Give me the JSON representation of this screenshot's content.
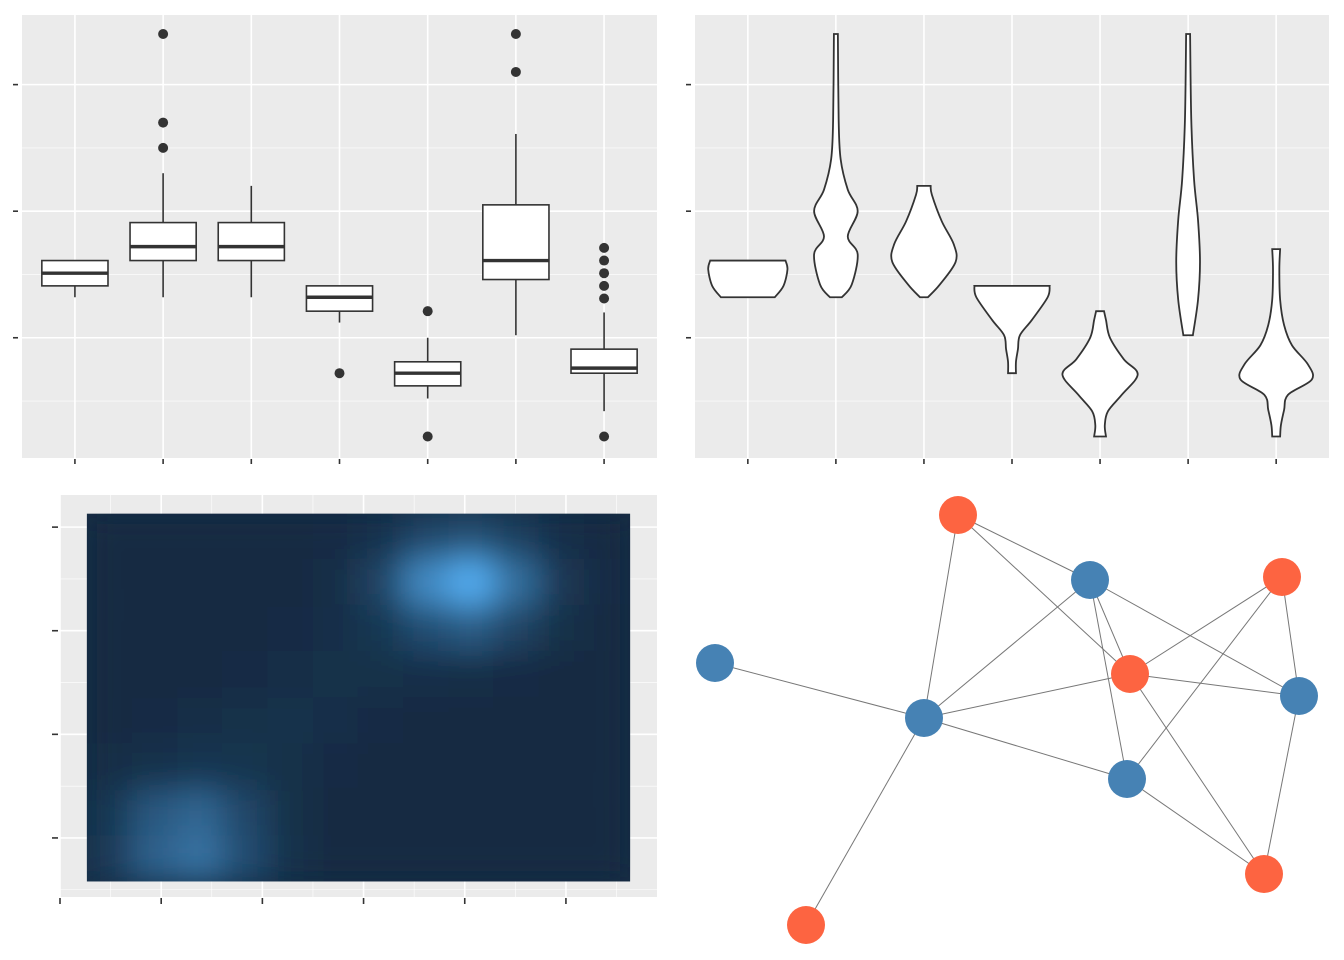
{
  "chart_data": [
    {
      "type": "boxplot",
      "categories": [
        null,
        null,
        null,
        null,
        null,
        null,
        null
      ],
      "ylim": [
        0.05,
        3.55
      ],
      "yticks": [
        1,
        2,
        3
      ],
      "yminor": [
        0.5,
        1.5,
        2.5
      ],
      "grid": true,
      "color": "#333333",
      "boxes": [
        {
          "low": 1.32,
          "q1": 1.41,
          "median": 1.51,
          "q3": 1.61,
          "high": 1.61,
          "outliers": []
        },
        {
          "low": 1.32,
          "q1": 1.61,
          "median": 1.72,
          "q3": 1.91,
          "high": 2.3,
          "outliers": [
            2.5,
            2.7,
            3.4
          ]
        },
        {
          "low": 1.32,
          "q1": 1.61,
          "median": 1.72,
          "q3": 1.91,
          "high": 2.2,
          "outliers": []
        },
        {
          "low": 1.12,
          "q1": 1.21,
          "median": 1.32,
          "q3": 1.41,
          "high": 1.41,
          "outliers": [
            0.72
          ]
        },
        {
          "low": 0.52,
          "q1": 0.62,
          "median": 0.72,
          "q3": 0.81,
          "high": 1.0,
          "outliers": [
            1.21,
            0.22
          ]
        },
        {
          "low": 1.02,
          "q1": 1.46,
          "median": 1.61,
          "q3": 2.05,
          "high": 2.61,
          "outliers": [
            3.1,
            3.4
          ]
        },
        {
          "low": 0.42,
          "q1": 0.72,
          "median": 0.76,
          "q3": 0.91,
          "high": 1.2,
          "outliers": [
            1.31,
            1.41,
            1.51,
            1.61,
            1.71,
            0.22
          ]
        }
      ]
    },
    {
      "type": "violin",
      "categories": [
        null,
        null,
        null,
        null,
        null,
        null,
        null
      ],
      "ylim": [
        0.05,
        3.55
      ],
      "yticks": [
        1,
        2,
        3
      ],
      "yminor": [
        0.5,
        1.5,
        2.5
      ],
      "grid": true,
      "color": "#333333",
      "violins": [
        {
          "y": [
            1.32,
            1.41,
            1.54,
            1.61
          ],
          "density": [
            0.68,
            0.9,
            1,
            0.95
          ]
        },
        {
          "y": [
            1.32,
            1.42,
            1.66,
            1.8,
            2.0,
            2.17,
            2.41,
            2.72,
            3.4
          ],
          "density": [
            0.15,
            0.4,
            0.55,
            0.3,
            0.55,
            0.3,
            0.12,
            0.07,
            0.05
          ]
        },
        {
          "y": [
            1.32,
            1.42,
            1.6,
            1.74,
            1.92,
            2.13,
            2.2
          ],
          "density": [
            0.1,
            0.4,
            0.8,
            0.75,
            0.45,
            0.2,
            0.17
          ]
        },
        {
          "y": [
            0.72,
            0.81,
            0.91,
            1.02,
            1.14,
            1.32,
            1.41
          ],
          "density": [
            0.1,
            0.1,
            0.15,
            0.2,
            0.5,
            0.9,
            0.95
          ]
        },
        {
          "y": [
            0.22,
            0.31,
            0.42,
            0.55,
            0.71,
            0.83,
            1.0,
            1.14,
            1.21
          ],
          "density": [
            0.15,
            0.12,
            0.2,
            0.55,
            0.95,
            0.6,
            0.25,
            0.15,
            0.1
          ]
        },
        {
          "y": [
            1.02,
            1.3,
            1.6,
            1.93,
            2.25,
            2.72,
            3.4
          ],
          "density": [
            0.12,
            0.25,
            0.3,
            0.25,
            0.15,
            0.08,
            0.05
          ]
        },
        {
          "y": [
            0.22,
            0.31,
            0.43,
            0.55,
            0.67,
            0.79,
            0.94,
            1.1,
            1.3,
            1.54,
            1.7
          ],
          "density": [
            0.1,
            0.12,
            0.2,
            0.3,
            0.9,
            0.8,
            0.4,
            0.2,
            0.1,
            0.08,
            0.1
          ]
        }
      ]
    },
    {
      "type": "heatmap",
      "xlim": [
        0,
        5.9
      ],
      "ylim": [
        0.43,
        4.31
      ],
      "xticks": [
        0,
        1,
        2,
        3,
        4,
        5
      ],
      "xminor": [
        0.5,
        1.5,
        2.5,
        3.5,
        4.5,
        5.5
      ],
      "yticks": [
        1,
        2,
        3,
        4
      ],
      "yminor": [
        0.5,
        1.5,
        2.5,
        3.5
      ],
      "grid": true,
      "x": [
        0.49,
        0.94,
        1.39,
        1.83,
        2.28,
        2.73,
        3.17,
        3.62,
        4.07,
        4.51,
        4.96,
        5.41
      ],
      "y": [
        3.91,
        3.47,
        3.02,
        2.58,
        2.13,
        1.69,
        1.24,
        0.8
      ],
      "z": [
        [
          0,
          0,
          0,
          0,
          0,
          0.01,
          0.06,
          0.21,
          0.28,
          0.15,
          0.03,
          0
        ],
        [
          0,
          0,
          0,
          0,
          0,
          0.02,
          0.19,
          0.71,
          0.98,
          0.51,
          0.1,
          0.01
        ],
        [
          0,
          0,
          0,
          0,
          0.01,
          0.03,
          0.09,
          0.26,
          0.36,
          0.19,
          0.04,
          0
        ],
        [
          0,
          0,
          0,
          0.01,
          0.02,
          0.04,
          0.04,
          0.03,
          0.02,
          0.01,
          0,
          0
        ],
        [
          0,
          0.01,
          0.02,
          0.04,
          0.05,
          0.03,
          0.01,
          0,
          0,
          0,
          0,
          0
        ],
        [
          0.02,
          0.05,
          0.08,
          0.07,
          0.04,
          0.01,
          0,
          0,
          0,
          0,
          0,
          0
        ],
        [
          0.09,
          0.34,
          0.44,
          0.21,
          0.04,
          0,
          0,
          0,
          0,
          0,
          0,
          0
        ],
        [
          0.12,
          0.41,
          0.53,
          0.26,
          0.05,
          0,
          0,
          0,
          0,
          0,
          0,
          0
        ]
      ],
      "zlim": [
        0,
        1
      ],
      "low": "#132b43",
      "high": "#56b1f7"
    },
    {
      "type": "network",
      "edge_color": "#777777",
      "nodes": [
        {
          "color": "#fd6441"
        },
        {
          "color": "#4682b4"
        },
        {
          "color": "#fd6441"
        },
        {
          "color": "#4682b4"
        },
        {
          "color": "#fd6441"
        },
        {
          "color": "#4682b4"
        },
        {
          "color": "#4682b4"
        },
        {
          "color": "#4682b4"
        },
        {
          "color": "#fd6441"
        },
        {
          "color": "#fd6441"
        }
      ],
      "edges": [
        [
          0,
          1
        ],
        [
          0,
          4
        ],
        [
          0,
          6
        ],
        [
          1,
          6
        ],
        [
          1,
          4
        ],
        [
          1,
          5
        ],
        [
          1,
          7
        ],
        [
          2,
          4
        ],
        [
          2,
          7
        ],
        [
          2,
          5
        ],
        [
          3,
          6
        ],
        [
          4,
          6
        ],
        [
          4,
          5
        ],
        [
          4,
          8
        ],
        [
          5,
          8
        ],
        [
          6,
          7
        ],
        [
          6,
          9
        ],
        [
          7,
          8
        ]
      ]
    }
  ]
}
